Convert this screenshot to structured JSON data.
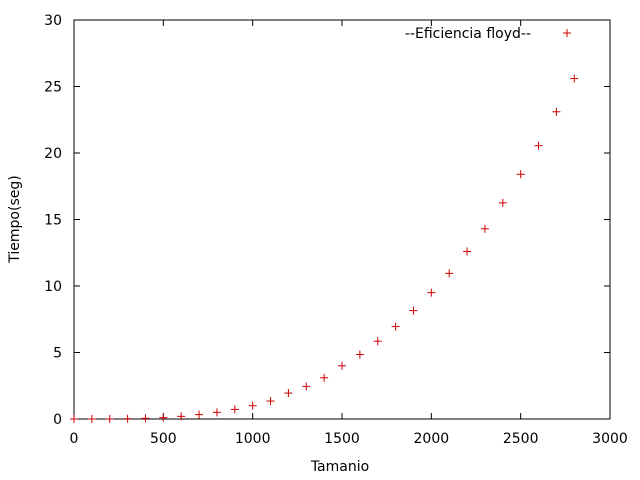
{
  "chart_data": {
    "type": "scatter",
    "title": "",
    "xlabel": "Tamanio",
    "ylabel": "Tiempo(seg)",
    "xlim": [
      0,
      3000
    ],
    "ylim": [
      0,
      30
    ],
    "xticks": [
      0,
      500,
      1000,
      1500,
      2000,
      2500,
      3000
    ],
    "yticks": [
      0,
      5,
      10,
      15,
      20,
      25,
      30
    ],
    "grid": false,
    "legend": {
      "placement": "top-right"
    },
    "series": [
      {
        "name": "--Eficiencia floyd--",
        "color": "#cc0000",
        "marker": "plus",
        "x": [
          0,
          100,
          200,
          300,
          400,
          500,
          600,
          700,
          800,
          900,
          1000,
          1100,
          1200,
          1300,
          1400,
          1500,
          1600,
          1700,
          1800,
          1900,
          2000,
          2100,
          2200,
          2300,
          2400,
          2500,
          2600,
          2700,
          2800
        ],
        "y": [
          0,
          0,
          0,
          0.02,
          0.05,
          0.1,
          0.2,
          0.33,
          0.5,
          0.72,
          1.0,
          1.35,
          1.95,
          2.45,
          3.1,
          4.0,
          4.85,
          5.85,
          6.95,
          8.15,
          9.5,
          10.95,
          12.6,
          14.3,
          16.25,
          18.4,
          20.55,
          23.1,
          25.6
        ]
      }
    ]
  }
}
